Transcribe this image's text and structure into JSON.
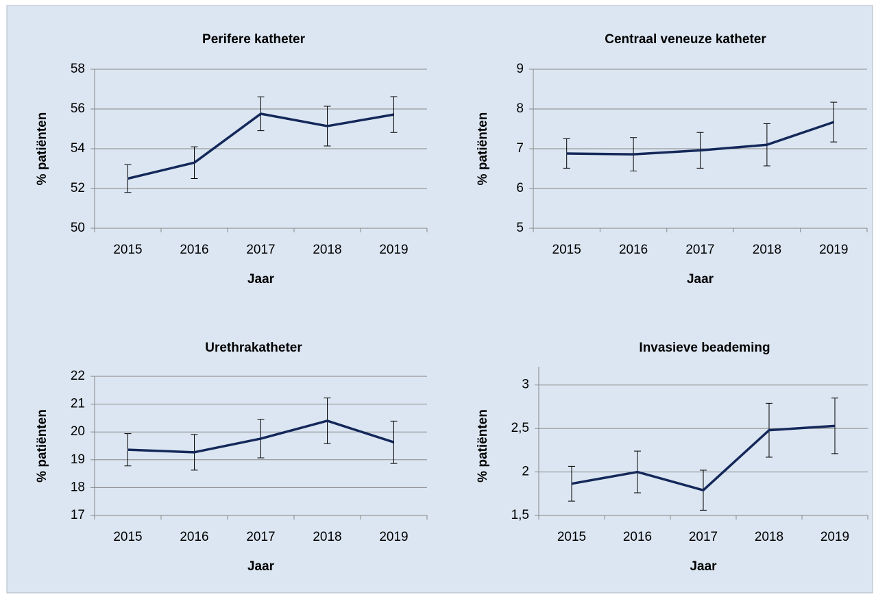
{
  "chart_data": [
    {
      "type": "line",
      "title": "Perifere katheter",
      "x_label": "Jaar",
      "y_label": "% patiënten",
      "categories": [
        "2015",
        "2016",
        "2017",
        "2018",
        "2019"
      ],
      "values": [
        52.5,
        53.3,
        55.76,
        55.14,
        55.72
      ],
      "errors": [
        0.7,
        0.8,
        0.85,
        1.0,
        0.9
      ],
      "color": "#14285a",
      "ylim": [
        50,
        58
      ],
      "yticks": [
        50,
        52,
        54,
        56,
        58
      ],
      "grid": true
    },
    {
      "type": "line",
      "title": "Centraal veneuze katheter",
      "x_label": "Jaar",
      "y_label": "% patiënten",
      "categories": [
        "2015",
        "2016",
        "2017",
        "2018",
        "2019"
      ],
      "values": [
        6.88,
        6.86,
        6.96,
        7.1,
        7.67
      ],
      "errors": [
        0.37,
        0.42,
        0.45,
        0.53,
        0.5
      ],
      "color": "#14285a",
      "ylim": [
        5,
        9
      ],
      "yticks": [
        5,
        6,
        7,
        8,
        9
      ],
      "grid": true
    },
    {
      "type": "line",
      "title": "Urethrakatheter",
      "x_label": "Jaar",
      "y_label": "% patiënten",
      "categories": [
        "2015",
        "2016",
        "2017",
        "2018",
        "2019"
      ],
      "values": [
        19.36,
        19.27,
        19.76,
        20.4,
        19.63
      ],
      "errors": [
        0.58,
        0.64,
        0.69,
        0.82,
        0.76
      ],
      "color": "#14285a",
      "ylim": [
        17,
        22
      ],
      "yticks": [
        17,
        18,
        19,
        20,
        21,
        22
      ],
      "grid": true
    },
    {
      "type": "line",
      "title": "Invasieve beademing",
      "x_label": "Jaar",
      "y_label": "% patiënten",
      "categories": [
        "2015",
        "2016",
        "2017",
        "2018",
        "2019"
      ],
      "values": [
        1.865,
        2.0,
        1.79,
        2.48,
        2.53
      ],
      "errors": [
        0.2,
        0.24,
        0.23,
        0.31,
        0.32
      ],
      "color": "#14285a",
      "ylim": [
        1.5,
        3.1
      ],
      "yticks": [
        {
          "value": 1.5,
          "label": "1,5"
        },
        2,
        {
          "value": 2.5,
          "label": "2,5"
        },
        3
      ],
      "grid": true
    }
  ]
}
